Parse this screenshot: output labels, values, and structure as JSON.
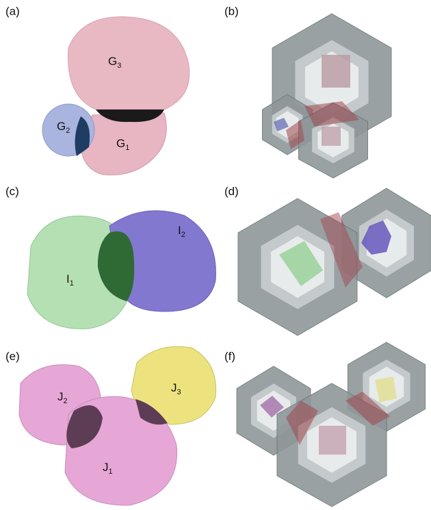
{
  "panels": [
    {
      "label": "(a)",
      "objects": [
        {
          "base": "G",
          "sub": "3"
        },
        {
          "base": "G",
          "sub": "2"
        },
        {
          "base": "G",
          "sub": "1"
        }
      ]
    },
    {
      "label": "(b)"
    },
    {
      "label": "(c)",
      "objects": [
        {
          "base": "I",
          "sub": "1"
        },
        {
          "base": "I",
          "sub": "2"
        }
      ]
    },
    {
      "label": "(d)"
    },
    {
      "label": "(e)",
      "objects": [
        {
          "base": "J",
          "sub": "2"
        },
        {
          "base": "J",
          "sub": "3"
        },
        {
          "base": "J",
          "sub": "1"
        }
      ]
    },
    {
      "label": "(f)"
    }
  ]
}
